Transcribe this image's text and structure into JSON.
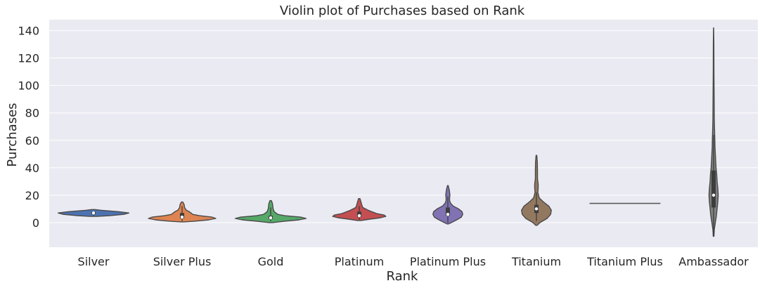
{
  "chart_data": {
    "type": "violin",
    "title": "Violin plot of Purchases based on Rank",
    "xlabel": "Rank",
    "ylabel": "Purchases",
    "ylim": [
      -18,
      148
    ],
    "yticks": [
      0,
      20,
      40,
      60,
      80,
      100,
      120,
      140
    ],
    "grid": true,
    "background": "#eaeaf2",
    "categories": [
      "Silver",
      "Silver Plus",
      "Gold",
      "Platinum",
      "Platinum Plus",
      "Titanium",
      "Titanium Plus",
      "Ambassador"
    ],
    "violins": [
      {
        "category": "Silver",
        "color": "#4c72b0",
        "median": 7,
        "q1": 6,
        "q3": 8,
        "whisker_low": 5,
        "whisker_high": 8,
        "profile": [
          [
            4.5,
            0.1
          ],
          [
            5,
            0.45
          ],
          [
            6,
            0.85
          ],
          [
            7,
            1.0
          ],
          [
            8,
            0.7
          ],
          [
            9,
            0.2
          ],
          [
            9.5,
            0.05
          ]
        ]
      },
      {
        "category": "Silver Plus",
        "color": "#dd8452",
        "median": 4,
        "q1": 3,
        "q3": 7,
        "whisker_low": 1,
        "whisker_high": 12,
        "profile": [
          [
            0.5,
            0.05
          ],
          [
            1,
            0.35
          ],
          [
            2,
            0.75
          ],
          [
            3,
            0.95
          ],
          [
            4,
            0.85
          ],
          [
            5,
            0.5
          ],
          [
            6,
            0.3
          ],
          [
            7,
            0.25
          ],
          [
            8,
            0.2
          ],
          [
            9,
            0.12
          ],
          [
            11,
            0.07
          ],
          [
            13,
            0.06
          ],
          [
            15,
            0.02
          ]
        ]
      },
      {
        "category": "Gold",
        "color": "#55a868",
        "median": 3.5,
        "q1": 2.5,
        "q3": 5,
        "whisker_low": 1,
        "whisker_high": 11,
        "profile": [
          [
            0,
            0.05
          ],
          [
            1,
            0.4
          ],
          [
            2,
            0.8
          ],
          [
            3,
            1.0
          ],
          [
            4,
            0.85
          ],
          [
            5,
            0.4
          ],
          [
            6,
            0.2
          ],
          [
            8,
            0.1
          ],
          [
            10,
            0.07
          ],
          [
            12,
            0.06
          ],
          [
            14,
            0.05
          ],
          [
            16,
            0.02
          ]
        ]
      },
      {
        "category": "Platinum",
        "color": "#c44e52",
        "median": 5,
        "q1": 4,
        "q3": 8,
        "whisker_low": 2,
        "whisker_high": 12,
        "profile": [
          [
            1.5,
            0.05
          ],
          [
            2.5,
            0.3
          ],
          [
            3.5,
            0.6
          ],
          [
            4.5,
            0.75
          ],
          [
            5.5,
            0.7
          ],
          [
            6.5,
            0.5
          ],
          [
            8,
            0.35
          ],
          [
            9,
            0.25
          ],
          [
            11,
            0.1
          ],
          [
            13,
            0.07
          ],
          [
            15,
            0.05
          ],
          [
            17.5,
            0.02
          ]
        ]
      },
      {
        "category": "Platinum Plus",
        "color": "#8172b3",
        "median": 6,
        "q1": 5,
        "q3": 11,
        "whisker_low": 0,
        "whisker_high": 19,
        "profile": [
          [
            -1,
            0.02
          ],
          [
            0,
            0.1
          ],
          [
            2,
            0.25
          ],
          [
            4,
            0.38
          ],
          [
            6,
            0.42
          ],
          [
            8,
            0.4
          ],
          [
            10,
            0.3
          ],
          [
            12,
            0.15
          ],
          [
            14,
            0.08
          ],
          [
            16,
            0.05
          ],
          [
            18,
            0.05
          ],
          [
            20,
            0.06
          ],
          [
            22,
            0.05
          ],
          [
            24,
            0.04
          ],
          [
            27,
            0.01
          ]
        ]
      },
      {
        "category": "Titanium",
        "color": "#937860",
        "median": 10,
        "q1": 7,
        "q3": 13,
        "whisker_low": 1,
        "whisker_high": 22,
        "profile": [
          [
            -2,
            0.02
          ],
          [
            0,
            0.1
          ],
          [
            3,
            0.3
          ],
          [
            6,
            0.4
          ],
          [
            9,
            0.42
          ],
          [
            12,
            0.35
          ],
          [
            15,
            0.2
          ],
          [
            18,
            0.08
          ],
          [
            22,
            0.04
          ],
          [
            25,
            0.05
          ],
          [
            28,
            0.05
          ],
          [
            32,
            0.03
          ],
          [
            38,
            0.03
          ],
          [
            44,
            0.025
          ],
          [
            49,
            0.01
          ]
        ]
      },
      {
        "category": "Titanium Plus",
        "color": "#8c8c8c",
        "flat": true,
        "value": 14,
        "width": 1.0
      },
      {
        "category": "Ambassador",
        "color": "#808080",
        "median": 20,
        "q1": 11,
        "q3": 38,
        "whisker_low": -10,
        "whisker_high": 64,
        "profile": [
          [
            -10,
            0.01
          ],
          [
            -5,
            0.02
          ],
          [
            0,
            0.05
          ],
          [
            5,
            0.08
          ],
          [
            10,
            0.1
          ],
          [
            15,
            0.12
          ],
          [
            20,
            0.13
          ],
          [
            25,
            0.12
          ],
          [
            30,
            0.1
          ],
          [
            35,
            0.09
          ],
          [
            40,
            0.07
          ],
          [
            45,
            0.06
          ],
          [
            50,
            0.05
          ],
          [
            55,
            0.04
          ],
          [
            60,
            0.035
          ],
          [
            65,
            0.03
          ],
          [
            75,
            0.02
          ],
          [
            90,
            0.015
          ],
          [
            110,
            0.01
          ],
          [
            130,
            0.008
          ],
          [
            142,
            0.002
          ]
        ]
      }
    ]
  }
}
